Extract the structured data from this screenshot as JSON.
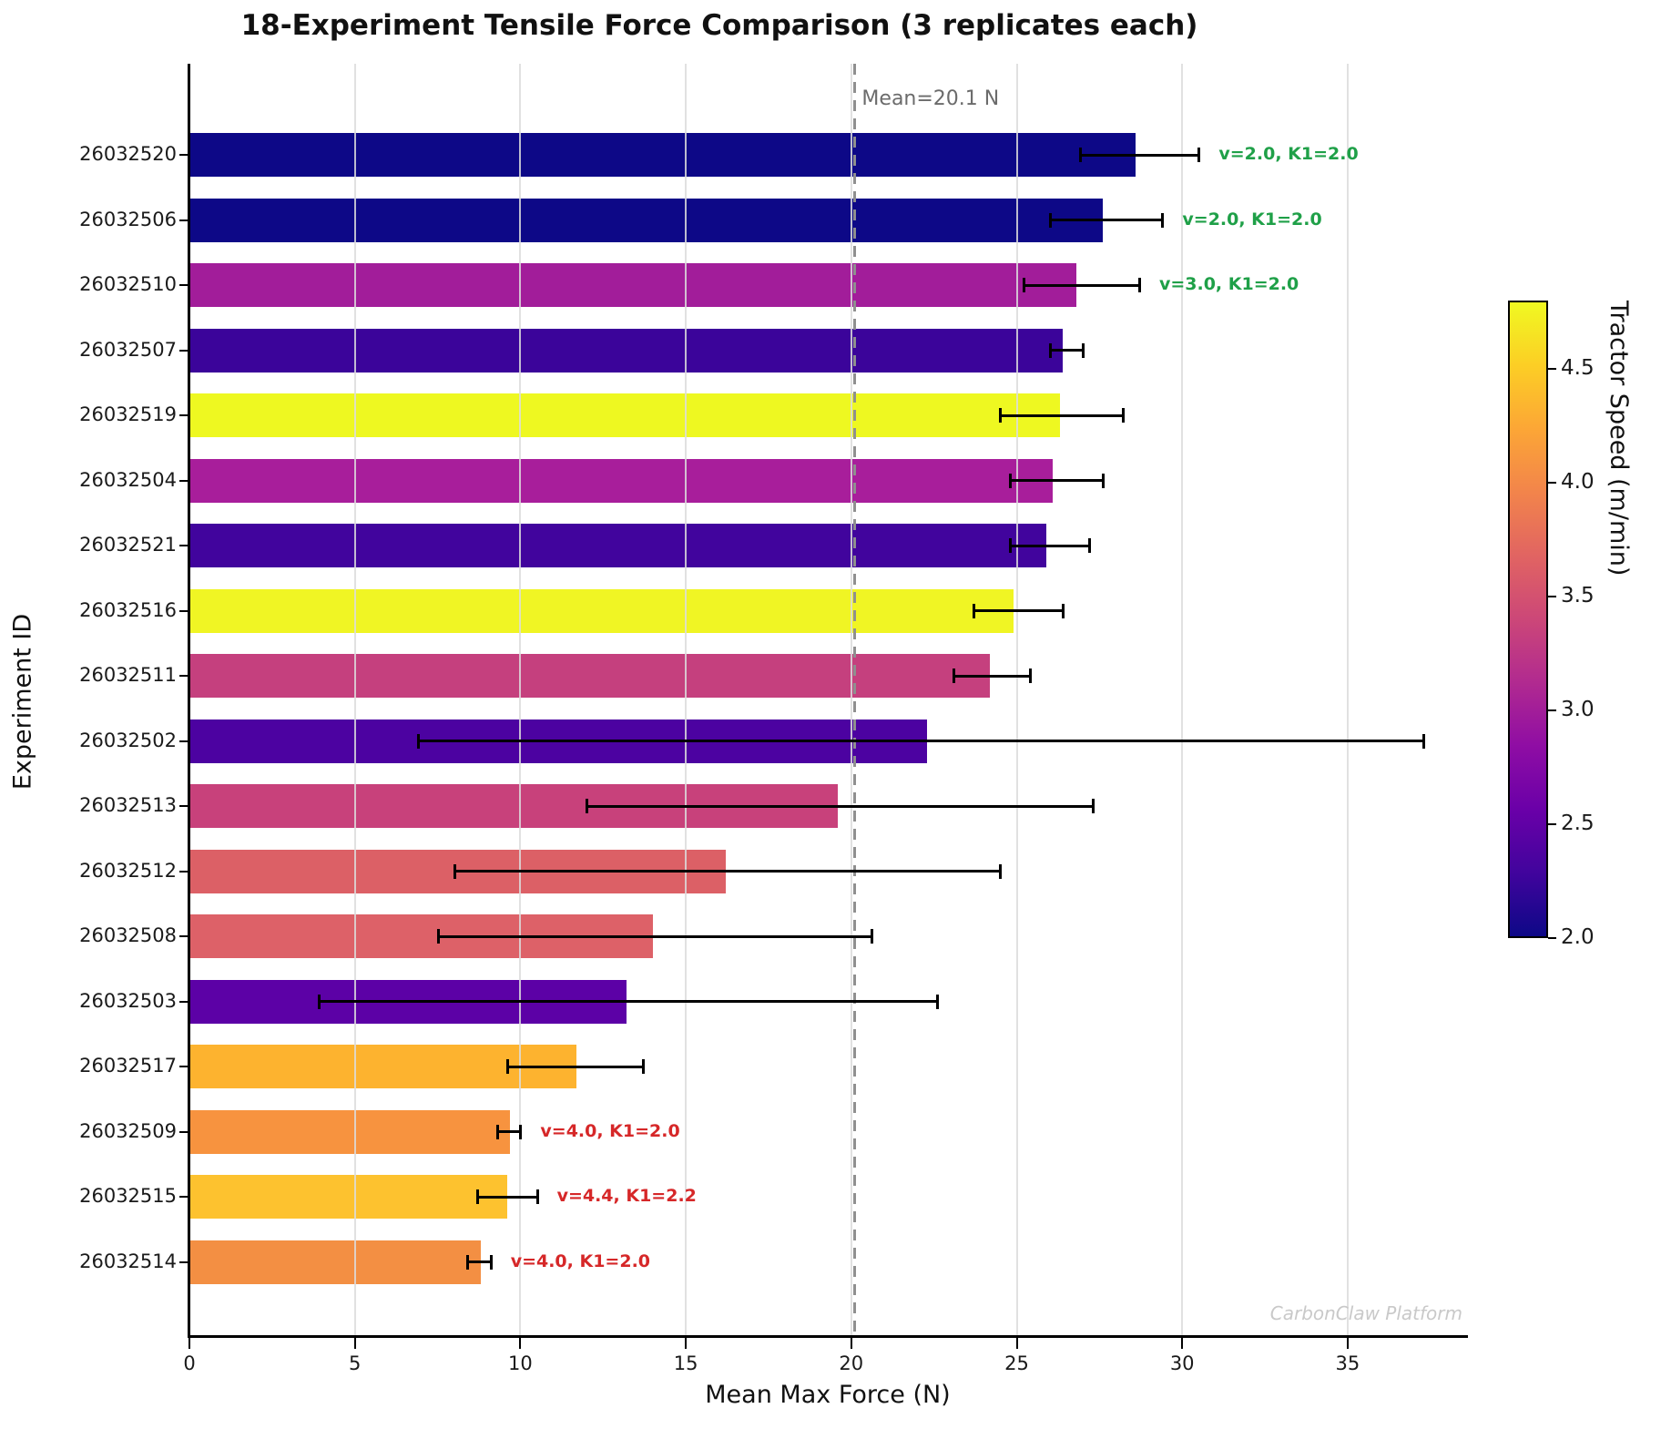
{
  "title": "18-Experiment Tensile Force Comparison (3 replicates each)",
  "axes": {
    "xlabel": "Mean Max Force (N)",
    "ylabel": "Experiment ID",
    "xticks": [
      0,
      5,
      10,
      15,
      20,
      25,
      30,
      35
    ],
    "xmin": 0,
    "xmax": 38.6,
    "grid": "vertical gridlines at each x tick"
  },
  "mean_line": {
    "value": 20.1,
    "label": "Mean=20.1 N",
    "style": "gray dashed vertical line"
  },
  "watermark": "CarbonClaw Platform",
  "colorbar": {
    "label": "Tractor Speed (m/min)",
    "vmin": 2.0,
    "vmax": 4.8,
    "colormap": "plasma",
    "ticks": [
      {
        "value": 4.5,
        "label": "4.5"
      },
      {
        "value": 4.0,
        "label": "4.0"
      },
      {
        "value": 3.5,
        "label": "3.5"
      },
      {
        "value": 3.0,
        "label": "3.0"
      },
      {
        "value": 2.5,
        "label": "2.5"
      },
      {
        "value": 2.0,
        "label": "2.0"
      }
    ]
  },
  "annotation_colors": {
    "green": "#1fa048",
    "red": "#d62728"
  },
  "chart_data": {
    "type": "bar",
    "orientation": "horizontal",
    "title": "18-Experiment Tensile Force Comparison (3 replicates each)",
    "xlabel": "Mean Max Force (N)",
    "ylabel": "Experiment ID",
    "xlim": [
      0,
      38.6
    ],
    "legend": "none (colorbar encodes Tractor Speed in m/min)",
    "categories": [
      "26032520",
      "26032506",
      "26032510",
      "26032507",
      "26032519",
      "26032504",
      "26032521",
      "26032516",
      "26032511",
      "26032502",
      "26032513",
      "26032512",
      "26032508",
      "26032503",
      "26032517",
      "26032509",
      "26032515",
      "26032514"
    ],
    "series": [
      {
        "name": "Mean Max Force (N)",
        "values": [
          28.6,
          27.6,
          26.8,
          26.4,
          26.3,
          26.1,
          25.9,
          24.9,
          24.2,
          22.3,
          19.6,
          16.2,
          14.0,
          13.2,
          11.7,
          9.7,
          9.6,
          8.8
        ]
      }
    ],
    "error_low": [
      26.9,
      26.0,
      25.2,
      26.0,
      24.5,
      24.8,
      24.8,
      23.7,
      23.1,
      6.9,
      12.0,
      8.0,
      7.5,
      3.9,
      9.6,
      9.3,
      8.7,
      8.4
    ],
    "error_high": [
      30.5,
      29.4,
      28.7,
      27.0,
      28.2,
      27.6,
      27.2,
      26.4,
      25.4,
      37.3,
      27.3,
      24.5,
      20.6,
      22.6,
      13.7,
      10.0,
      10.5,
      9.1
    ],
    "bar_colors": [
      "#0d0887",
      "#0d0887",
      "#a21d9a",
      "#3b049a",
      "#eef821",
      "#a81e9b",
      "#41049d",
      "#f0f524",
      "#c5407e",
      "#4c02a1",
      "#c8417b",
      "#dc6066",
      "#dd6168",
      "#5c01a6",
      "#fdb32f",
      "#f7933f",
      "#fdc22f",
      "#f38f43"
    ],
    "annotations": [
      {
        "index": 0,
        "text": "v=2.0, K1=2.0",
        "color_key": "green"
      },
      {
        "index": 1,
        "text": "v=2.0, K1=2.0",
        "color_key": "green"
      },
      {
        "index": 2,
        "text": "v=3.0, K1=2.0",
        "color_key": "green"
      },
      {
        "index": 15,
        "text": "v=4.0, K1=2.0",
        "color_key": "red"
      },
      {
        "index": 16,
        "text": "v=4.4, K1=2.2",
        "color_key": "red"
      },
      {
        "index": 17,
        "text": "v=4.0, K1=2.0",
        "color_key": "red"
      }
    ]
  }
}
